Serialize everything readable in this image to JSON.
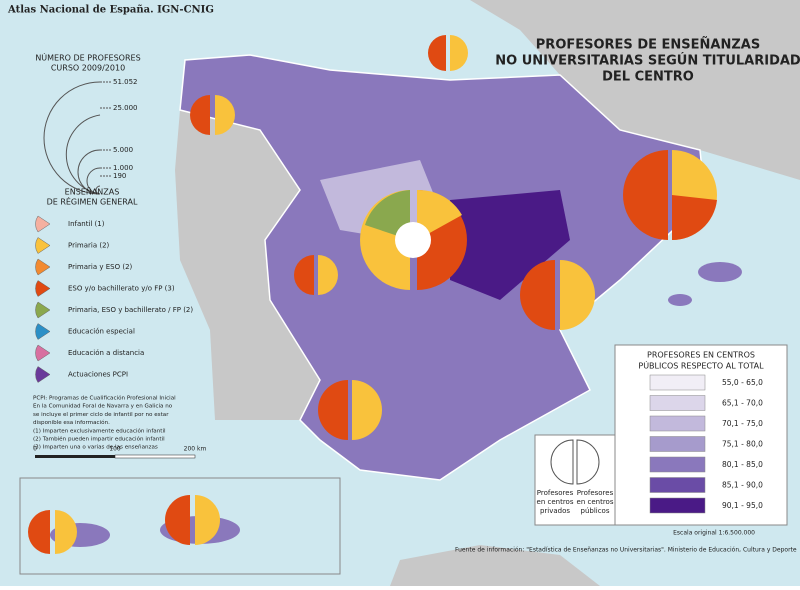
{
  "header": {
    "credit": "Atlas Nacional de España. IGN-CNIG",
    "title": [
      "PROFESORES DE ENSEÑANZAS",
      "NO UNIVERSITARIAS SEGÚN TITULARIDAD",
      "DEL CENTRO"
    ]
  },
  "size_legend": {
    "title": [
      "NÚMERO DE PROFESORES",
      "CURSO 2009/2010"
    ],
    "labels": [
      "51.052",
      "25.000",
      "5.000",
      "1.000",
      "190"
    ]
  },
  "category_legend": {
    "title": [
      "ENSEÑANZAS",
      "DE RÉGIMEN GENERAL"
    ],
    "items": [
      {
        "label": "Infantil (1)",
        "color": "#f5b0a0"
      },
      {
        "label": "Primaria (2)",
        "color": "#f9c23c"
      },
      {
        "label": "Primaria y ESO (2)",
        "color": "#f28a30"
      },
      {
        "label": "ESO y/o bachillerato y/o FP (3)",
        "color": "#e04a12"
      },
      {
        "label": "Primaria, ESO y bachillerato / FP (2)",
        "color": "#8aa84e"
      },
      {
        "label": "Educación especial",
        "color": "#2b8fc6"
      },
      {
        "label": "Educación a distancia",
        "color": "#d870a0"
      },
      {
        "label": "Actuaciones PCPI",
        "color": "#6a3a9a"
      }
    ]
  },
  "notes": [
    "PCPI: Programas de Cualificación Profesional Inicial",
    "En la Comunidad Foral de Navarra y en Galicia no",
    "se incluye el primer ciclo de infantil por no estar",
    "disponible esa información.",
    "(1) Imparten exclusivamente educación infantil",
    "(2) También pueden impartir educación infantil",
    "(3) Imparten una o varias de las enseñanzas"
  ],
  "scale_bar": [
    "0",
    "100",
    "200 km"
  ],
  "choropleth_legend": {
    "title": [
      "PROFESORES EN CENTROS",
      "PÚBLICOS RESPECTO AL TOTAL"
    ],
    "classes": [
      {
        "label": "55,0 - 65,0",
        "color": "#f1eef6"
      },
      {
        "label": "65,1 - 70,0",
        "color": "#dcd6ea"
      },
      {
        "label": "70,1 - 75,0",
        "color": "#c2b9dc"
      },
      {
        "label": "75,1 - 80,0",
        "color": "#a69bcc"
      },
      {
        "label": "80,1 - 85,0",
        "color": "#8a78bc"
      },
      {
        "label": "85,1 - 90,0",
        "color": "#6a4ca6"
      },
      {
        "label": "90,1 - 95,0",
        "color": "#4a1a86"
      }
    ]
  },
  "pie_legend": {
    "left": [
      "Profesores",
      "en centros",
      "privados"
    ],
    "right": [
      "Profesores",
      "en centros",
      "públicos"
    ]
  },
  "footer": {
    "scale": "Escala original 1:6.500.000",
    "source": "Fuente de información: \"Estadística de Enseñanzas no Universitarias\". Ministerio de Educación, Cultura y Deporte"
  }
}
